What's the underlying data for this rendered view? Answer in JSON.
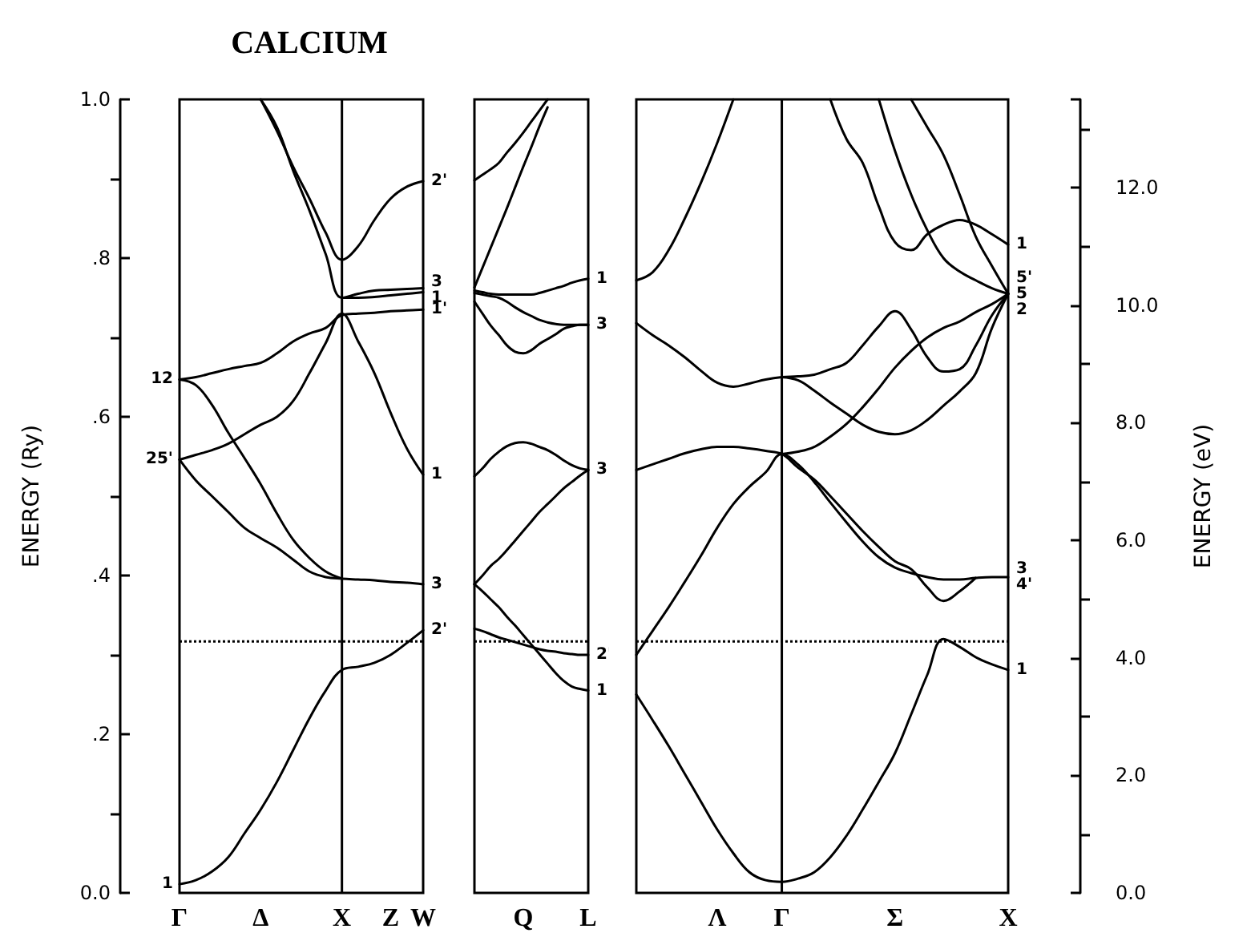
{
  "chart_data": [
    {
      "type": "line",
      "title": "CALCIUM",
      "ylabel": "ENERGY (Ry)",
      "ylim": [
        0,
        1
      ],
      "categories": [
        "Γ",
        null,
        null,
        null,
        null,
        "Δ",
        null,
        null,
        null,
        null,
        "X",
        null,
        null,
        "Z",
        null,
        "W"
      ],
      "yticks": [
        {
          "value": 0,
          "label": "0.0"
        },
        {
          "value": 0.2,
          "label": ".2"
        },
        {
          "value": 0.4,
          "label": ".4"
        },
        {
          "value": 0.6,
          "label": ".6"
        },
        {
          "value": 0.8,
          "label": ".8"
        },
        {
          "value": 1,
          "label": "1.0"
        }
      ],
      "series": [
        {
          "color": "#000000",
          "values": [
            0.011,
            0.016,
            0.027,
            0.045,
            0.075,
            0.105,
            0.14,
            0.18,
            0.22,
            0.255,
            0.281,
            0.285,
            0.29,
            0.3,
            0.315,
            0.331
          ]
        },
        {
          "color": "#000000",
          "values": [
            0.546,
            0.52,
            0.5,
            0.48,
            0.46,
            0.447,
            0.435,
            0.42,
            0.405,
            0.398,
            0.396,
            0.395,
            0.394,
            0.392,
            0.391,
            0.389
          ]
        },
        {
          "color": "#000000",
          "values": [
            0.647,
            0.64,
            0.615,
            0.58,
            0.548,
            0.515,
            0.478,
            0.445,
            0.422,
            0.405,
            0.396,
            null,
            null,
            null,
            null,
            null
          ]
        },
        {
          "color": "#000000",
          "values": [
            0.546,
            0.552,
            0.558,
            0.566,
            0.578,
            0.59,
            0.6,
            0.62,
            0.655,
            0.693,
            0.73,
            0.695,
            0.655,
            0.605,
            0.56,
            0.527
          ]
        },
        {
          "color": "#000000",
          "values": [
            0.647,
            0.65,
            0.655,
            0.66,
            0.664,
            0.668,
            0.68,
            0.695,
            0.705,
            0.712,
            0.728,
            0.73,
            0.731,
            0.733,
            0.734,
            0.735
          ]
        },
        {
          "color": "#000000",
          "values": [
            null,
            null,
            null,
            null,
            null,
            1,
            0.965,
            0.91,
            0.86,
            0.805,
            0.75,
            0.755,
            0.759,
            0.76,
            0.761,
            0.762
          ]
        },
        {
          "color": "#000000",
          "values": [
            null,
            null,
            null,
            null,
            null,
            1,
            0.96,
            0.915,
            0.875,
            0.832,
            0.798,
            0.815,
            0.848,
            0.875,
            0.89,
            0.897
          ]
        },
        {
          "color": "#000000",
          "values": [
            null,
            null,
            null,
            null,
            null,
            null,
            null,
            null,
            null,
            null,
            0.75,
            0.75,
            0.751,
            0.753,
            0.755,
            0.757
          ]
        }
      ],
      "ref_lines": [
        {
          "axis": "x",
          "value": "X",
          "label": null,
          "line_style": "solid"
        },
        {
          "axis": "y",
          "value": 0.317,
          "label": null,
          "line_style": "dotted"
        }
      ],
      "annotations": [
        {
          "text": "12",
          "x": "Γ",
          "y": 0.647
        },
        {
          "text": "25'",
          "x": "Γ",
          "y": 0.546
        },
        {
          "text": "1",
          "x": "Γ",
          "y": 0.011
        },
        {
          "text": "2'",
          "x": "W",
          "y": 0.897
        },
        {
          "text": "3",
          "x": "W",
          "y": 0.762
        },
        {
          "text": "1",
          "x": "W",
          "y": 0.757
        },
        {
          "text": "1'",
          "x": "W",
          "y": 0.735
        },
        {
          "text": "1",
          "x": "W",
          "y": 0.527
        },
        {
          "text": "3",
          "x": "W",
          "y": 0.389
        },
        {
          "text": "2'",
          "x": "W",
          "y": 0.331
        }
      ]
    },
    {
      "type": "line",
      "ylim": [
        0,
        1
      ],
      "tick_labels": "x",
      "categories": [
        null,
        null,
        null,
        null,
        null,
        null,
        "Q",
        null,
        null,
        null,
        null,
        null,
        null,
        null,
        "L"
      ],
      "series": [
        {
          "color": "#000000",
          "values": [
            0.898,
            0.905,
            0.912,
            0.92,
            0.933,
            0.945,
            0.958,
            0.972,
            0.986,
            1,
            null,
            null,
            null,
            null,
            null
          ]
        },
        {
          "color": "#000000",
          "values": [
            0.763,
            0.788,
            0.813,
            0.838,
            0.863,
            0.889,
            0.915,
            0.94,
            0.966,
            0.99,
            null,
            null,
            null,
            null,
            null
          ]
        },
        {
          "color": "#000000",
          "values": [
            0.759,
            0.757,
            0.755,
            0.754,
            0.754,
            0.754,
            0.754,
            0.754,
            0.756,
            0.759,
            0.762,
            0.765,
            0.769,
            0.772,
            0.774
          ]
        },
        {
          "color": "#000000",
          "values": [
            0.756,
            0.754,
            0.752,
            0.75,
            0.745,
            0.738,
            0.732,
            0.727,
            0.722,
            0.719,
            0.717,
            0.716,
            0.716,
            0.716,
            0.716
          ]
        },
        {
          "color": "#000000",
          "values": [
            0.745,
            0.73,
            0.715,
            0.703,
            0.69,
            0.682,
            0.68,
            0.684,
            0.692,
            0.698,
            0.704,
            0.711,
            0.714,
            0.716,
            0.716
          ]
        },
        {
          "color": "#000000",
          "values": [
            0.525,
            0.535,
            0.547,
            0.556,
            0.563,
            0.567,
            0.568,
            0.566,
            0.562,
            0.558,
            0.552,
            0.545,
            0.539,
            0.535,
            0.533
          ]
        },
        {
          "color": "#000000",
          "values": [
            0.389,
            0.4,
            0.412,
            0.421,
            0.432,
            0.444,
            0.456,
            0.468,
            0.48,
            0.49,
            0.5,
            0.51,
            0.518,
            0.526,
            0.533
          ]
        },
        {
          "color": "#000000",
          "values": [
            0.389,
            0.38,
            0.37,
            0.36,
            0.348,
            0.337,
            0.325,
            0.313,
            0.301,
            0.289,
            0.277,
            0.267,
            0.26,
            0.257,
            0.255
          ]
        },
        {
          "color": "#000000",
          "values": [
            0.333,
            0.33,
            0.326,
            0.322,
            0.319,
            0.316,
            0.313,
            0.31,
            0.307,
            0.305,
            0.304,
            0.302,
            0.301,
            0.3,
            0.3
          ]
        }
      ],
      "ref_lines": [
        {
          "axis": "y",
          "value": 0.317,
          "label": null,
          "line_style": "dotted"
        }
      ],
      "annotations": [
        {
          "text": "1",
          "x": "L",
          "y": 0.774
        },
        {
          "text": "3",
          "x": "L",
          "y": 0.716
        },
        {
          "text": "3",
          "x": "L",
          "y": 0.533
        },
        {
          "text": "2'",
          "x": "L",
          "y": 0.3
        },
        {
          "text": "1",
          "x": "L",
          "y": 0.255
        }
      ]
    },
    {
      "type": "line",
      "y2label": "ENERGY (eV)",
      "ylim": [
        0,
        1
      ],
      "y2lim": [
        0,
        13.5
      ],
      "categories": [
        null,
        null,
        null,
        null,
        null,
        "Λ",
        null,
        null,
        null,
        "Γ",
        null,
        null,
        null,
        null,
        null,
        null,
        "Σ",
        null,
        null,
        null,
        null,
        null,
        null,
        "X"
      ],
      "y2ticks": [
        {
          "value": 0,
          "label": "0.0"
        },
        {
          "value": 2,
          "label": "2.0"
        },
        {
          "value": 4,
          "label": "4.0"
        },
        {
          "value": 6,
          "label": "6.0"
        },
        {
          "value": 8,
          "label": "8.0"
        },
        {
          "value": 10,
          "label": "10.0"
        },
        {
          "value": 12,
          "label": "12.0"
        }
      ],
      "series": [
        {
          "color": "#000000",
          "values": [
            0.25,
            0.218,
            0.185,
            0.15,
            0.115,
            0.08,
            0.05,
            0.026,
            0.016,
            0.014,
            0.018,
            0.026,
            0.045,
            0.072,
            0.105,
            0.14,
            0.176,
            0.225,
            0.275,
            0.32,
            0.31,
            0.297,
            0.288,
            0.281
          ]
        },
        {
          "color": "#000000",
          "values": [
            0.3,
            0.33,
            0.36,
            0.392,
            0.425,
            0.46,
            0.49,
            0.512,
            0.53,
            0.553,
            0.54,
            0.518,
            0.492,
            0.467,
            0.443,
            0.423,
            0.41,
            0.403,
            0.398,
            0.395,
            0.395,
            0.397,
            0.398,
            0.398
          ]
        },
        {
          "color": "#000000",
          "values": [
            0.533,
            0.54,
            0.547,
            0.554,
            0.559,
            0.562,
            0.562,
            0.56,
            0.557,
            0.553,
            0.536,
            0.521,
            0.5,
            0.478,
            0.456,
            0.436,
            0.418,
            0.408,
            0.385,
            0.368,
            0.38,
            0.397,
            null,
            null
          ]
        },
        {
          "color": "#000000",
          "values": [
            0.718,
            0.703,
            0.69,
            0.675,
            0.658,
            0.643,
            0.638,
            0.642,
            0.647,
            0.65,
            0.651,
            0.653,
            0.66,
            0.668,
            0.69,
            0.714,
            0.733,
            0.71,
            0.675,
            0.657,
            0.66,
            0.69,
            0.728,
            0.755
          ]
        },
        {
          "color": "#000000",
          "values": [
            0.772,
            0.782,
            0.81,
            0.85,
            0.895,
            0.945,
            1,
            null,
            null,
            null,
            null,
            null,
            null,
            null,
            null,
            null,
            null,
            null,
            null,
            null,
            null,
            null,
            null,
            null
          ]
        },
        {
          "color": "#000000",
          "values": [
            null,
            null,
            null,
            null,
            null,
            null,
            null,
            null,
            null,
            0.65,
            0.646,
            0.633,
            0.618,
            0.604,
            0.59,
            0.581,
            0.578,
            0.583,
            0.596,
            0.614,
            0.632,
            0.655,
            0.712,
            0.755
          ]
        },
        {
          "color": "#000000",
          "values": [
            null,
            null,
            null,
            null,
            null,
            null,
            null,
            null,
            null,
            0.553,
            0.556,
            0.562,
            0.575,
            0.591,
            0.612,
            0.636,
            0.662,
            0.683,
            0.7,
            0.712,
            0.72,
            0.732,
            0.742,
            0.755
          ]
        },
        {
          "color": "#000000",
          "values": [
            null,
            null,
            null,
            null,
            null,
            null,
            null,
            null,
            null,
            null,
            null,
            null,
            1,
            0.95,
            0.92,
            0.865,
            0.82,
            0.81,
            0.83,
            0.842,
            0.848,
            0.842,
            0.83,
            0.817
          ]
        },
        {
          "color": "#000000",
          "values": [
            null,
            null,
            null,
            null,
            null,
            null,
            null,
            null,
            null,
            null,
            null,
            null,
            null,
            null,
            null,
            1,
            0.935,
            0.88,
            0.835,
            0.8,
            0.783,
            0.772,
            0.762,
            0.755
          ]
        },
        {
          "color": "#000000",
          "values": [
            null,
            null,
            null,
            null,
            null,
            null,
            null,
            null,
            null,
            null,
            null,
            null,
            null,
            null,
            null,
            null,
            null,
            1,
            0.965,
            0.93,
            0.88,
            0.827,
            0.79,
            0.755
          ]
        }
      ],
      "ref_lines": [
        {
          "axis": "x",
          "value": "Γ",
          "label": null,
          "line_style": "solid"
        },
        {
          "axis": "y",
          "value": 0.317,
          "label": null,
          "line_style": "dotted"
        }
      ],
      "annotations": [
        {
          "text": "1",
          "x": "X",
          "y": 0.817
        },
        {
          "text": "5'",
          "x": "X",
          "y": 0.755
        },
        {
          "text": "5",
          "x": "X",
          "y": 0.755
        },
        {
          "text": "2",
          "x": "X",
          "y": 0.755
        },
        {
          "text": "3",
          "x": "X",
          "y": 0.398
        },
        {
          "text": "4'",
          "x": "X",
          "y": 0.398
        },
        {
          "text": "1",
          "x": "X",
          "y": 0.281
        }
      ]
    }
  ]
}
